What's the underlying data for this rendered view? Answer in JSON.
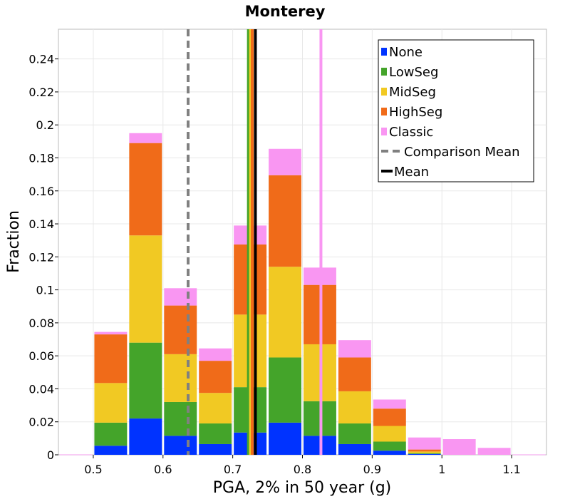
{
  "chart_data": {
    "type": "bar",
    "stacked": true,
    "title": "Monterey",
    "xlabel": "PGA, 2% in 50 year (g)",
    "ylabel": "Fraction",
    "xlim": [
      0.45,
      1.15
    ],
    "ylim": [
      0,
      0.258
    ],
    "bin_width": 0.05,
    "grid": true,
    "legend_position": "top-right",
    "x_ticks": [
      0.5,
      0.6,
      0.7,
      0.8,
      0.9,
      1.0,
      1.1
    ],
    "x_tick_labels": [
      "0.5",
      "0.6",
      "0.7",
      "0.8",
      "0.9",
      "1",
      "1.1"
    ],
    "y_ticks": [
      0,
      0.02,
      0.04,
      0.06,
      0.08,
      0.1,
      0.12,
      0.14,
      0.16,
      0.18,
      0.2,
      0.22,
      0.24
    ],
    "y_tick_labels": [
      "0",
      "0.02",
      "0.04",
      "0.06",
      "0.08",
      "0.1",
      "0.12",
      "0.14",
      "0.16",
      "0.18",
      "0.2",
      "0.22",
      "0.24"
    ],
    "bin_centers": [
      0.475,
      0.525,
      0.575,
      0.625,
      0.675,
      0.725,
      0.775,
      0.825,
      0.875,
      0.925,
      0.975,
      1.025,
      1.075,
      1.125
    ],
    "series": [
      {
        "name": "None",
        "color": "#0033ff",
        "values": [
          0.0,
          0.0055,
          0.022,
          0.0115,
          0.0065,
          0.0135,
          0.0195,
          0.0115,
          0.0065,
          0.0025,
          0.0005,
          0.0,
          0.0,
          0.0
        ]
      },
      {
        "name": "LowSeg",
        "color": "#44a42a",
        "values": [
          0.0,
          0.014,
          0.046,
          0.0205,
          0.0125,
          0.0275,
          0.0395,
          0.021,
          0.0125,
          0.0055,
          0.0005,
          0.0,
          0.0,
          0.0
        ]
      },
      {
        "name": "MidSeg",
        "color": "#f1c923",
        "values": [
          0.0,
          0.024,
          0.065,
          0.029,
          0.0185,
          0.044,
          0.055,
          0.0345,
          0.0195,
          0.0095,
          0.001,
          0.0,
          0.0,
          0.0
        ]
      },
      {
        "name": "HighSeg",
        "color": "#f06b19",
        "values": [
          0.0,
          0.0295,
          0.056,
          0.0295,
          0.0195,
          0.0425,
          0.0555,
          0.036,
          0.0205,
          0.0105,
          0.0012,
          0.0,
          0.0,
          0.0
        ]
      },
      {
        "name": "Classic",
        "color": "#f996f2",
        "values": [
          0.0002,
          0.0015,
          0.006,
          0.0105,
          0.0075,
          0.0115,
          0.016,
          0.0105,
          0.0105,
          0.0055,
          0.0073,
          0.0095,
          0.0042,
          0.0002
        ]
      }
    ],
    "mean_lines": [
      {
        "series": "LowSeg",
        "color": "#44a42a",
        "x": 0.7225
      },
      {
        "series": "MidSeg",
        "color": "#f1c923",
        "x": 0.7255
      },
      {
        "series": "HighSeg",
        "color": "#f06b19",
        "x": 0.728
      },
      {
        "series": "Classic",
        "color": "#f996f2",
        "x": 0.8265
      }
    ],
    "comparison_mean": {
      "label": "Comparison Mean",
      "x": 0.636,
      "color": "#808080",
      "style": "dashed"
    },
    "mean": {
      "label": "Mean",
      "x": 0.7325,
      "color": "#000000"
    }
  }
}
